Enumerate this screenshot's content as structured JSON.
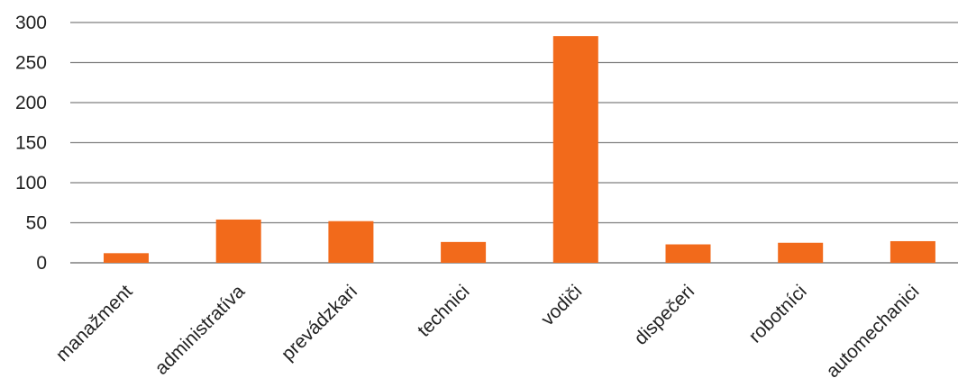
{
  "chart_data": {
    "type": "bar",
    "title": "",
    "xlabel": "",
    "ylabel": "",
    "categories": [
      "manažment",
      "administratíva",
      "prevádzkari",
      "technici",
      "vodiči",
      "dispečeri",
      "robotníci",
      "automechanici"
    ],
    "values": [
      12,
      54,
      52,
      26,
      283,
      23,
      25,
      27
    ],
    "ylim": [
      0,
      300
    ],
    "yticks": [
      0,
      50,
      100,
      150,
      200,
      250,
      300
    ],
    "grid": true,
    "legend": "none",
    "bar_color": "#F26A1B",
    "gridline_color": "#7f7f7f"
  }
}
